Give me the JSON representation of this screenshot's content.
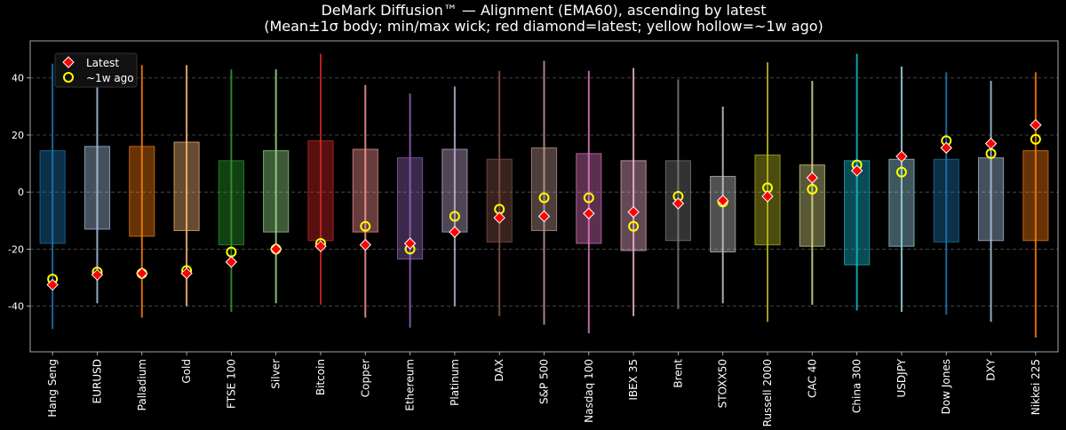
{
  "chart_data": {
    "type": "box",
    "title": "DeMark Diffusion™ — Alignment (EMA60), ascending by latest",
    "subtitle": "(Mean±1σ body; min/max wick; red diamond=latest; yellow hollow=~1w ago)",
    "xlabel": "",
    "ylabel": "",
    "ylim": [
      -56,
      53
    ],
    "yticks": [
      -40,
      -20,
      0,
      20,
      40
    ],
    "grid": true,
    "legend": {
      "placement": "top-left",
      "entries": [
        {
          "label": "Latest",
          "marker": "red-diamond"
        },
        {
          "label": "~1w ago",
          "marker": "yellow-hollow-circle"
        }
      ]
    },
    "categories": [
      "Hang Seng",
      "EURUSD",
      "Palladium",
      "Gold",
      "FTSE 100",
      "Silver",
      "Bitcoin",
      "Copper",
      "Ethereum",
      "Platinum",
      "DAX",
      "S&P 500",
      "Nasdaq 100",
      "IBEX 35",
      "Brent",
      "STOXX50",
      "Russell 2000",
      "CAC 40",
      "China 300",
      "USDJPY",
      "Dow Jones",
      "DXY",
      "Nikkei 225"
    ],
    "colors": [
      "#1f77b4",
      "#aec7e8",
      "#ff7f0e",
      "#ffbb78",
      "#2ca02c",
      "#98df8a",
      "#d62728",
      "#ff9896",
      "#9467bd",
      "#c5b0d5",
      "#8c564b",
      "#c49c94",
      "#e377c2",
      "#f7b6d2",
      "#7f7f7f",
      "#c7c7c7",
      "#bcbd22",
      "#dbdb8d",
      "#17becf",
      "#9edae5",
      "#1f77b4",
      "#aec7e8",
      "#ff7f0e"
    ],
    "mean_minus_sd": [
      -18,
      -13,
      -15.5,
      -13.5,
      -18.5,
      -14,
      -17,
      -14,
      -23.5,
      -14,
      -17.5,
      -13.5,
      -18,
      -20.5,
      -17,
      -21,
      -18.5,
      -19,
      -25.5,
      -19,
      -17.5,
      -17,
      -17
    ],
    "mean_plus_sd": [
      14.5,
      16,
      16,
      17.5,
      11,
      14.5,
      18,
      15,
      12,
      15,
      11.5,
      15.5,
      13.5,
      11,
      11,
      5.5,
      13,
      9.5,
      11,
      11.5,
      11.5,
      12,
      14.5
    ],
    "min": [
      -48,
      -39,
      -44,
      -40,
      -42,
      -39,
      -39.5,
      -44,
      -47.5,
      -40,
      -43.5,
      -46.5,
      -49.5,
      -43.5,
      -41,
      -39,
      -45.5,
      -39.5,
      -41.5,
      -42,
      -43,
      -45.5,
      -51
    ],
    "max": [
      45,
      44.5,
      44.5,
      44.5,
      43,
      43,
      48.5,
      37.5,
      34.5,
      37,
      42.5,
      46,
      42.5,
      43.5,
      39.5,
      30,
      45.5,
      39,
      48.5,
      44,
      42,
      39,
      42
    ],
    "latest": [
      -32.5,
      -29,
      -28.5,
      -28.5,
      -24.5,
      -20,
      -19,
      -18.5,
      -18,
      -14,
      -9,
      -8.5,
      -7.5,
      -7,
      -4,
      -3,
      -1.5,
      5,
      7.5,
      12.5,
      15.5,
      17,
      23.5
    ],
    "week_ago": [
      -30.5,
      -28,
      -28.5,
      -27.5,
      -21,
      -20,
      -18,
      -12,
      -20,
      -8.5,
      -6,
      -2,
      -2,
      -12,
      -1.5,
      -3.5,
      1.5,
      1,
      9.5,
      7,
      18,
      13.5,
      18.5
    ]
  }
}
